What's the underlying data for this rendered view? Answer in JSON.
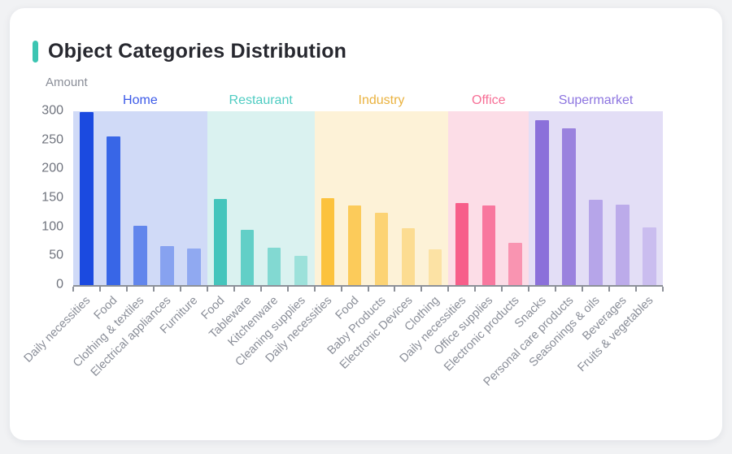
{
  "title": "Object Categories Distribution",
  "accent_color": "#3cc5b2",
  "chart_data": {
    "type": "bar",
    "title": "Object Categories Distribution",
    "xlabel": "",
    "ylabel": "Amount",
    "ylim": [
      0,
      300
    ],
    "y_ticks": [
      0,
      50,
      100,
      150,
      200,
      250,
      300
    ],
    "grid": false,
    "legend_position": "top-inside-bands",
    "groups": [
      {
        "name": "Home",
        "label_color": "#3c5ae8",
        "band_color": "#d0daf7",
        "categories": [
          "Daily necessities",
          "Food",
          "Clothing & textiles",
          "Electrical appliances",
          "Furniture"
        ],
        "values": [
          298,
          257,
          102,
          68,
          63
        ],
        "bar_colors": [
          "#1b4ae0",
          "#3866e7",
          "#6286ec",
          "#87a2f0",
          "#90a9f1"
        ]
      },
      {
        "name": "Restaurant",
        "label_color": "#4fccc2",
        "band_color": "#daf2f0",
        "categories": [
          "Food",
          "Tableware",
          "Kitchenware",
          "Cleaning supplies"
        ],
        "values": [
          148,
          96,
          64,
          50
        ],
        "bar_colors": [
          "#45c5bc",
          "#62cfc7",
          "#82d9d2",
          "#9ce1da"
        ]
      },
      {
        "name": "Industry",
        "label_color": "#eab23f",
        "band_color": "#fdf2d7",
        "categories": [
          "Daily necessities",
          "Food",
          "Baby Products",
          "Electronic Devices",
          "Clothing"
        ],
        "values": [
          150,
          138,
          125,
          98,
          62
        ],
        "bar_colors": [
          "#fcc23d",
          "#fccb5a",
          "#fcd374",
          "#fcdc91",
          "#fce2a4"
        ]
      },
      {
        "name": "Office",
        "label_color": "#f76f96",
        "band_color": "#fcdde7",
        "categories": [
          "Daily necessities",
          "Office supplies",
          "Electronic products"
        ],
        "values": [
          141,
          137,
          73
        ],
        "bar_colors": [
          "#f75e8a",
          "#f8779e",
          "#f994b1"
        ]
      },
      {
        "name": "Supermarket",
        "label_color": "#8d75e0",
        "band_color": "#e3def6",
        "categories": [
          "Snacks",
          "Personal care products",
          "Seasonings & oils",
          "Beverages",
          "Fruits & vegetables"
        ],
        "values": [
          284,
          270,
          147,
          139,
          100
        ],
        "bar_colors": [
          "#8b70da",
          "#9a82de",
          "#b6a5e9",
          "#bcabea",
          "#cabdef"
        ]
      }
    ]
  }
}
